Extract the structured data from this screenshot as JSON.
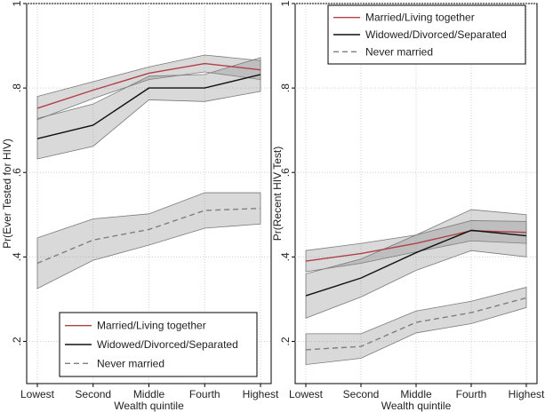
{
  "chart_data": [
    {
      "type": "line",
      "xlabel": "Wealth quintile",
      "ylabel": "Pr(Ever Tested for HIV)",
      "categories": [
        "Lowest",
        "Second",
        "Middle",
        "Fourth",
        "Highest"
      ],
      "ylim": [
        0.1,
        1.0
      ],
      "yticks": [
        {
          "v": 0.2,
          "label": ".2"
        },
        {
          "v": 0.4,
          "label": ".4"
        },
        {
          "v": 0.6,
          "label": ".6"
        },
        {
          "v": 0.8,
          "label": ".8"
        },
        {
          "v": 1.0,
          "label": "1"
        }
      ],
      "grid": true,
      "legend_position": "bottom",
      "series": [
        {
          "name": "Married/Living together",
          "color": "#b04048",
          "style": "solid",
          "values": [
            0.752,
            0.795,
            0.835,
            0.858,
            0.843
          ],
          "lower": [
            0.725,
            0.775,
            0.82,
            0.838,
            0.82
          ],
          "upper": [
            0.78,
            0.815,
            0.85,
            0.878,
            0.865
          ]
        },
        {
          "name": "Widowed/Divorced/Separated",
          "color": "#111111",
          "style": "solid",
          "values": [
            0.68,
            0.712,
            0.8,
            0.8,
            0.832
          ],
          "lower": [
            0.632,
            0.662,
            0.772,
            0.768,
            0.792
          ],
          "upper": [
            0.728,
            0.762,
            0.828,
            0.832,
            0.872
          ]
        },
        {
          "name": "Never married",
          "color": "#7f7f7f",
          "style": "dashed",
          "values": [
            0.385,
            0.44,
            0.465,
            0.51,
            0.515
          ],
          "lower": [
            0.325,
            0.392,
            0.428,
            0.468,
            0.478
          ],
          "upper": [
            0.445,
            0.49,
            0.502,
            0.552,
            0.552
          ]
        }
      ]
    },
    {
      "type": "line",
      "xlabel": "Wealth quintile",
      "ylabel": "Pr(Recent HIV Test)",
      "categories": [
        "Lowest",
        "Second",
        "Middle",
        "Fourth",
        "Highest"
      ],
      "ylim": [
        0.1,
        1.0
      ],
      "yticks": [
        {
          "v": 0.2,
          "label": ".2"
        },
        {
          "v": 0.4,
          "label": ".4"
        },
        {
          "v": 0.6,
          "label": ".6"
        },
        {
          "v": 0.8,
          "label": ".8"
        },
        {
          "v": 1.0,
          "label": "1"
        }
      ],
      "grid": true,
      "legend_position": "top",
      "series": [
        {
          "name": "Married/Living together",
          "color": "#b04048",
          "style": "solid",
          "values": [
            0.39,
            0.408,
            0.432,
            0.462,
            0.458
          ],
          "lower": [
            0.365,
            0.385,
            0.412,
            0.438,
            0.432
          ],
          "upper": [
            0.415,
            0.432,
            0.452,
            0.486,
            0.484
          ]
        },
        {
          "name": "Widowed/Divorced/Separated",
          "color": "#111111",
          "style": "solid",
          "values": [
            0.308,
            0.35,
            0.41,
            0.463,
            0.45
          ],
          "lower": [
            0.255,
            0.305,
            0.368,
            0.415,
            0.4
          ],
          "upper": [
            0.36,
            0.395,
            0.452,
            0.512,
            0.5
          ]
        },
        {
          "name": "Never married",
          "color": "#7f7f7f",
          "style": "dashed",
          "values": [
            0.18,
            0.188,
            0.245,
            0.268,
            0.303
          ],
          "lower": [
            0.145,
            0.16,
            0.22,
            0.242,
            0.28
          ],
          "upper": [
            0.218,
            0.218,
            0.272,
            0.295,
            0.328
          ]
        }
      ]
    }
  ]
}
